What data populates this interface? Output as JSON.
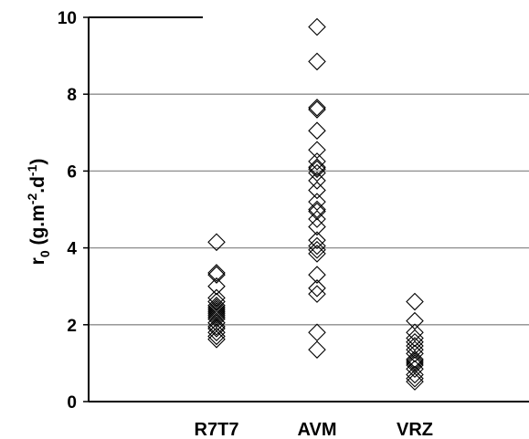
{
  "chart_data": {
    "type": "scatter",
    "title": "",
    "ylabel": {
      "base": "r",
      "sub": "0",
      "unit_prefix": " (g.m",
      "unit_exp1": "-2",
      "unit_mid": ".d",
      "unit_exp2": "-1",
      "unit_suffix": ")"
    },
    "ylim": [
      0,
      10
    ],
    "yticks": [
      0,
      2,
      4,
      6,
      8,
      10
    ],
    "grid": true,
    "categories": [
      "R7T7",
      "AVM",
      "VRZ"
    ],
    "marker": "open-diamond",
    "series": [
      {
        "category": "R7T7",
        "values": [
          4.15,
          3.35,
          3.3,
          3.0,
          2.7,
          2.6,
          2.5,
          2.45,
          2.4,
          2.35,
          2.3,
          2.25,
          2.2,
          2.15,
          2.05,
          1.95,
          1.9,
          1.8,
          1.7,
          1.62
        ]
      },
      {
        "category": "AVM",
        "values": [
          9.75,
          8.85,
          7.65,
          7.6,
          7.05,
          6.55,
          6.25,
          6.1,
          6.05,
          5.95,
          5.75,
          5.5,
          5.2,
          5.0,
          4.95,
          4.75,
          4.55,
          4.2,
          4.05,
          3.95,
          3.85,
          3.3,
          2.95,
          2.8,
          1.8,
          1.35
        ]
      },
      {
        "category": "VRZ",
        "values": [
          2.6,
          2.1,
          1.8,
          1.65,
          1.55,
          1.45,
          1.35,
          1.25,
          1.1,
          1.05,
          1.0,
          0.95,
          0.85,
          0.7,
          0.6,
          0.52
        ]
      }
    ]
  }
}
